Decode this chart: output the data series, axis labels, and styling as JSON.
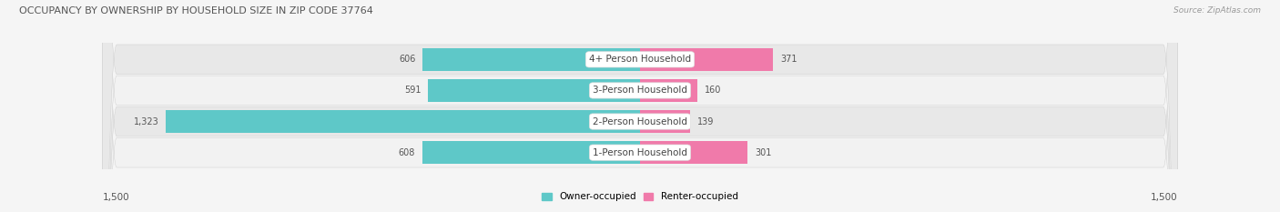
{
  "title": "OCCUPANCY BY OWNERSHIP BY HOUSEHOLD SIZE IN ZIP CODE 37764",
  "source": "Source: ZipAtlas.com",
  "categories": [
    "1-Person Household",
    "2-Person Household",
    "3-Person Household",
    "4+ Person Household"
  ],
  "owner_values": [
    608,
    1323,
    591,
    606
  ],
  "renter_values": [
    301,
    139,
    160,
    371
  ],
  "owner_color": "#5ec8c8",
  "renter_color": "#f07aaa",
  "row_colors": [
    "#f2f2f2",
    "#e8e8e8",
    "#f2f2f2",
    "#e8e8e8"
  ],
  "axis_max": 1500,
  "bar_height": 0.72,
  "legend_owner": "Owner-occupied",
  "legend_renter": "Renter-occupied",
  "bg_color": "#f5f5f5"
}
